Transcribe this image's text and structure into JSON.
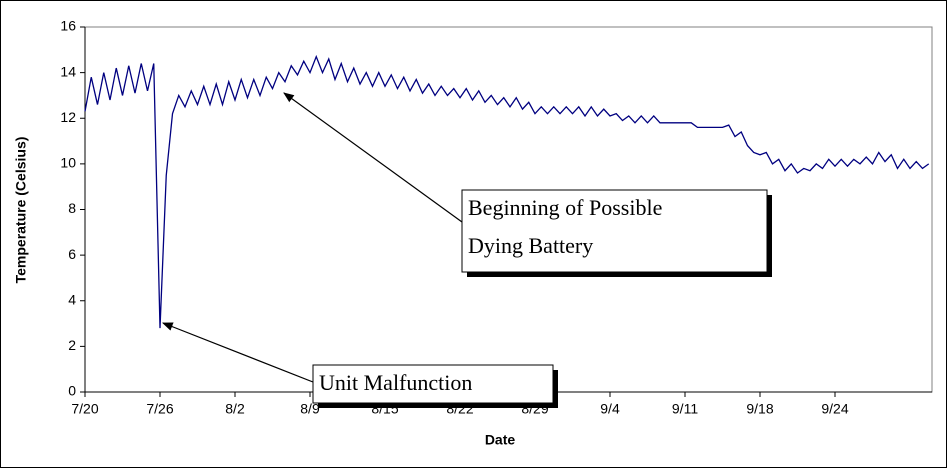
{
  "chart_data": {
    "type": "line",
    "xlabel": "Date",
    "ylabel": "Temperature (Celsius)",
    "categories": [
      "7/20",
      null,
      null,
      null,
      null,
      null,
      null,
      null,
      null,
      null,
      null,
      null,
      "7/26",
      null,
      null,
      null,
      null,
      null,
      null,
      null,
      null,
      null,
      null,
      null,
      "8/2",
      null,
      null,
      null,
      null,
      null,
      null,
      null,
      null,
      null,
      null,
      null,
      "8/9",
      null,
      null,
      null,
      null,
      null,
      null,
      null,
      null,
      null,
      null,
      null,
      "8/15",
      null,
      null,
      null,
      null,
      null,
      null,
      null,
      null,
      null,
      null,
      null,
      "8/22",
      null,
      null,
      null,
      null,
      null,
      null,
      null,
      null,
      null,
      null,
      null,
      "8/29",
      null,
      null,
      null,
      null,
      null,
      null,
      null,
      null,
      null,
      null,
      null,
      "9/4",
      null,
      null,
      null,
      null,
      null,
      null,
      null,
      null,
      null,
      null,
      null,
      "9/11",
      null,
      null,
      null,
      null,
      null,
      null,
      null,
      null,
      null,
      null,
      null,
      "9/18",
      null,
      null,
      null,
      null,
      null,
      null,
      null,
      null,
      null,
      null,
      null,
      "9/24",
      null,
      null,
      null,
      null,
      null,
      null,
      null,
      null,
      null,
      null,
      null,
      null,
      null,
      null,
      null
    ],
    "series": [
      {
        "color": "#000080",
        "values": [
          12.3,
          13.8,
          12.6,
          14.0,
          12.8,
          14.2,
          13.0,
          14.3,
          13.1,
          14.4,
          13.2,
          14.4,
          2.8,
          9.5,
          12.2,
          13.0,
          12.5,
          13.2,
          12.6,
          13.4,
          12.6,
          13.5,
          12.6,
          13.6,
          12.8,
          13.7,
          12.9,
          13.7,
          13.0,
          13.8,
          13.3,
          14.0,
          13.6,
          14.3,
          13.9,
          14.5,
          14.0,
          14.7,
          14.0,
          14.6,
          13.7,
          14.4,
          13.6,
          14.2,
          13.5,
          14.0,
          13.4,
          14.0,
          13.4,
          13.9,
          13.3,
          13.8,
          13.2,
          13.7,
          13.1,
          13.5,
          13.0,
          13.4,
          13.0,
          13.3,
          12.9,
          13.3,
          12.8,
          13.2,
          12.7,
          13.0,
          12.6,
          12.9,
          12.5,
          12.9,
          12.4,
          12.7,
          12.2,
          12.5,
          12.2,
          12.5,
          12.2,
          12.5,
          12.2,
          12.5,
          12.1,
          12.5,
          12.1,
          12.4,
          12.1,
          12.2,
          11.9,
          12.1,
          11.8,
          12.1,
          11.8,
          12.1,
          11.8,
          11.8,
          11.8,
          11.8,
          11.8,
          11.8,
          11.6,
          11.6,
          11.6,
          11.6,
          11.6,
          11.7,
          11.2,
          11.4,
          10.8,
          10.5,
          10.4,
          10.5,
          10.0,
          10.2,
          9.7,
          10.0,
          9.6,
          9.8,
          9.7,
          10.0,
          9.8,
          10.2,
          9.9,
          10.2,
          9.9,
          10.2,
          10.0,
          10.3,
          10.0,
          10.5,
          10.1,
          10.4,
          9.8,
          10.2,
          9.8,
          10.1,
          9.8,
          10.0
        ]
      }
    ],
    "ylim": [
      0,
      16
    ],
    "yticks": [
      0,
      2,
      4,
      6,
      8,
      10,
      12,
      14,
      16
    ],
    "annotations": [
      {
        "text": [
          "Beginning of Possible",
          "Dying Battery"
        ]
      },
      {
        "text": [
          "Unit Malfunction"
        ]
      }
    ]
  }
}
